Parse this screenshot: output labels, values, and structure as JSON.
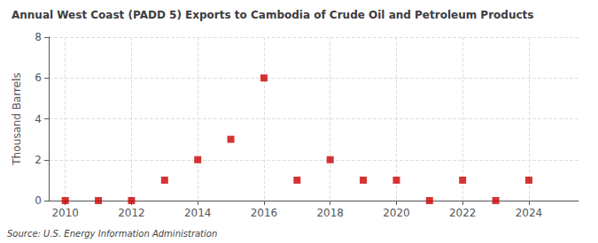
{
  "chart_data": {
    "type": "scatter",
    "title": "Annual West Coast (PADD 5) Exports to Cambodia of Crude Oil and Petroleum Products",
    "ylabel": "Thousand Barrels",
    "source": "Source: U.S. Energy Information Administration",
    "x": [
      2010,
      2011,
      2012,
      2013,
      2014,
      2015,
      2016,
      2017,
      2018,
      2019,
      2020,
      2021,
      2022,
      2023,
      2024
    ],
    "values": [
      0,
      0,
      0,
      1,
      2,
      3,
      6,
      1,
      2,
      1,
      1,
      0,
      1,
      0,
      1
    ],
    "color": "#cc0000",
    "marker": "square",
    "xlim": [
      2009.5,
      2025.5
    ],
    "xticks": [
      2010,
      2012,
      2014,
      2016,
      2018,
      2020,
      2022,
      2024
    ],
    "ylim": [
      0,
      8
    ],
    "yticks": [
      0,
      2,
      4,
      6,
      8
    ],
    "grid": true
  }
}
